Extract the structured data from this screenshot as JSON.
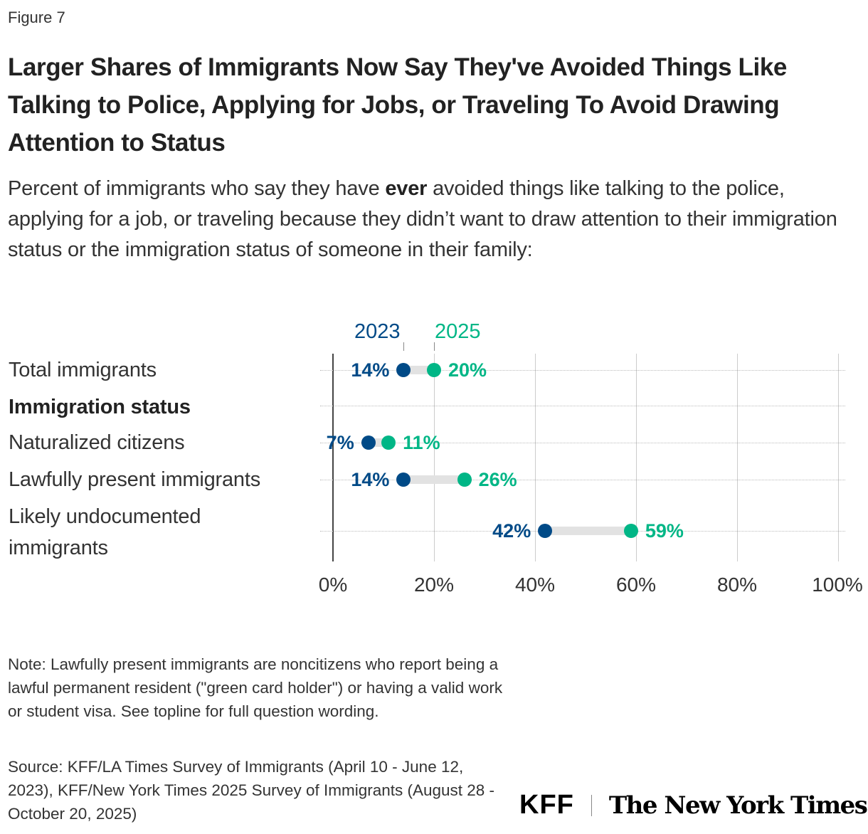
{
  "figure_label": "Figure 7",
  "title": "Larger Shares of Immigrants Now Say They've Avoided Things Like Talking to Police, Applying for Jobs, or Traveling To Avoid Drawing Attention to Status",
  "subtitle": {
    "before": "Percent of immigrants who say they have ",
    "bold": "ever",
    "after": " avoided things like talking to the police, applying for a job, or traveling because they didn’t want to draw attention to their immigration status or the immigration status of someone in their family:"
  },
  "chart_data": {
    "type": "dumbbell",
    "xlim": [
      0,
      100
    ],
    "x_ticks": [
      "0%",
      "20%",
      "40%",
      "60%",
      "80%",
      "100%"
    ],
    "grid": true,
    "legend_placement": "top",
    "series": [
      {
        "name": "2023",
        "color": "#004a87"
      },
      {
        "name": "2025",
        "color": "#00b686"
      }
    ],
    "rows": [
      {
        "label": "Total immigrants",
        "header": false,
        "v2023": 14,
        "v2025": 20,
        "l2023": "14%",
        "l2025": "20%"
      },
      {
        "label": "Immigration status",
        "header": true
      },
      {
        "label": "Naturalized citizens",
        "header": false,
        "v2023": 7,
        "v2025": 11,
        "l2023": "7%",
        "l2025": "11%"
      },
      {
        "label": "Lawfully present immigrants",
        "header": false,
        "v2023": 14,
        "v2025": 26,
        "l2023": "14%",
        "l2025": "26%"
      },
      {
        "label": "Likely undocumented immigrants",
        "header": false,
        "v2023": 42,
        "v2025": 59,
        "l2023": "42%",
        "l2025": "59%"
      }
    ]
  },
  "note": "Note: Lawfully present immigrants are noncitizens who report being a lawful permanent resident (\"green card holder\") or having a valid work or student visa. See topline for full question wording.",
  "source": "Source: KFF/LA Times Survey of Immigrants (April 10 - June 12, 2023), KFF/New York Times 2025 Survey of Immigrants (August 28 - October 20, 2025)",
  "logos": {
    "kff": "KFF",
    "nyt": "The New York Times"
  }
}
